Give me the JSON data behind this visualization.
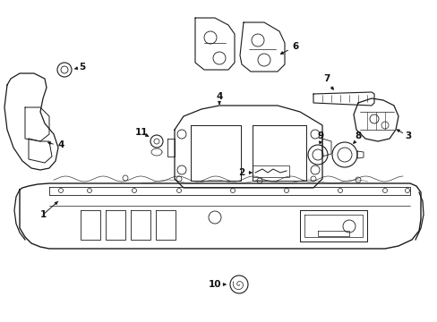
{
  "bg_color": "#ffffff",
  "line_color": "#1a1a1a",
  "text_color": "#111111",
  "fig_width": 4.89,
  "fig_height": 3.6,
  "dpi": 100,
  "label_fontsize": 7.5
}
